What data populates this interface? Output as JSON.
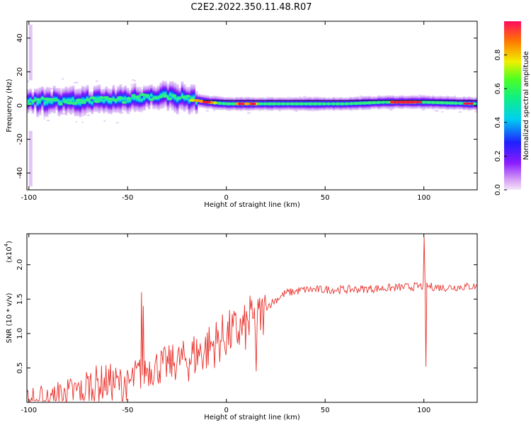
{
  "page": {
    "title": "C2E2.2022.350.11.48.R07"
  },
  "chart_data": [
    {
      "id": "spectrogram",
      "type": "heatmap",
      "xlabel": "Height of straight line (km)",
      "ylabel": "Frequency (Hz)",
      "xlim": [
        -101,
        127
      ],
      "ylim": [
        -50,
        50
      ],
      "xticks": [
        -100,
        -50,
        0,
        50,
        100
      ],
      "yticks": [
        -40,
        -20,
        0,
        20,
        40
      ],
      "colorbar": {
        "label": "Normalized spectral amplitude",
        "range": [
          0,
          1
        ],
        "ticks": [
          0.0,
          0.2,
          0.4,
          0.6,
          0.8
        ],
        "colormap": "rainbow (magenta-blue-cyan-green-yellow-red)"
      },
      "ridge_frequency_hz": {
        "x": [
          -100,
          -90,
          -80,
          -70,
          -60,
          -50,
          -40,
          -30,
          -20,
          -10,
          0,
          10,
          20,
          40,
          60,
          80,
          100,
          127
        ],
        "y": [
          3,
          3,
          2,
          3,
          3,
          4,
          5,
          6,
          4,
          2,
          1,
          1,
          1,
          1,
          1,
          2,
          2,
          1
        ]
      },
      "ridge_amplitude": {
        "x": [
          -100,
          -80,
          -60,
          -40,
          -20,
          -10,
          0,
          10,
          20,
          40,
          60,
          80,
          90,
          100,
          110,
          127
        ],
        "y": [
          0.55,
          0.6,
          0.55,
          0.55,
          0.55,
          0.9,
          0.5,
          0.9,
          0.45,
          0.5,
          0.5,
          0.55,
          0.9,
          0.55,
          0.5,
          0.7
        ]
      }
    },
    {
      "id": "snr",
      "type": "line",
      "xlabel": "Height of straight line (km)",
      "ylabel": "SNR (10 * v/v)",
      "multiplier": "(x10^4)",
      "multiplier_base": "(x10",
      "multiplier_exp": "4",
      "multiplier_close": ")",
      "xlim": [
        -101,
        127
      ],
      "ylim": [
        0,
        2.45
      ],
      "xticks": [
        -100,
        -50,
        0,
        50,
        100
      ],
      "yticks": [
        0.5,
        1.0,
        1.5,
        2.0
      ],
      "ytick_labels": [
        "0.5",
        "1.0",
        "1.5",
        "2.0"
      ],
      "color": "#e8302a",
      "envelope": {
        "x": [
          -101,
          -90,
          -80,
          -70,
          -60,
          -50,
          -45,
          -40,
          -30,
          -20,
          -10,
          0,
          10,
          15,
          20,
          30,
          40,
          60,
          80,
          100,
          110,
          127
        ],
        "y": [
          0.02,
          0.05,
          0.15,
          0.3,
          0.35,
          0.3,
          0.45,
          0.55,
          0.6,
          0.7,
          0.85,
          1.05,
          1.15,
          1.25,
          1.4,
          1.6,
          1.65,
          1.65,
          1.67,
          1.7,
          1.68,
          1.7
        ]
      },
      "spikes": [
        {
          "x": -43,
          "y": 1.6
        },
        {
          "x": -42,
          "y": 1.4
        },
        {
          "x": 100,
          "y": 2.4
        },
        {
          "x": 101,
          "y": 0.52
        },
        {
          "x": 15,
          "y": 0.45
        },
        {
          "x": 12,
          "y": 1.55
        }
      ]
    }
  ]
}
